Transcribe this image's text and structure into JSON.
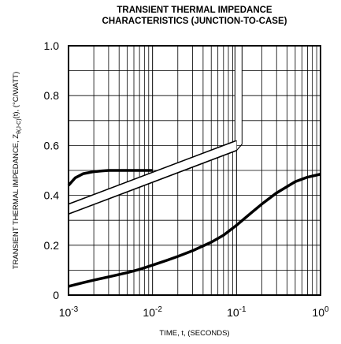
{
  "chart_data": {
    "type": "line",
    "title_lines": [
      "TRANSIENT THERMAL IMPEDANCE",
      "CHARACTERISTICS (JUNCTION-TO-CASE)"
    ],
    "xlabel": "TIME, t, (SECONDS)",
    "ylabel": {
      "prefix": "TRANSIENT THERMAL IMPEDANCE, Z",
      "subscript": "θ(J-C)",
      "suffix": "(t), (°C/WATT)"
    },
    "x_scale": "log",
    "xlim": [
      0.001,
      1
    ],
    "ylim": [
      0,
      1.0
    ],
    "x_ticks": [
      {
        "base": "10",
        "exp": "-3",
        "value": 0.001
      },
      {
        "base": "10",
        "exp": "-2",
        "value": 0.01
      },
      {
        "base": "10",
        "exp": "-1",
        "value": 0.1
      },
      {
        "base": "10",
        "exp": "0",
        "value": 1
      }
    ],
    "y_ticks": [
      "0",
      "0.2",
      "0.4",
      "0.6",
      "0.8",
      "1.0"
    ],
    "grid": true,
    "series": [
      {
        "x": [
          0.001,
          0.0015,
          0.002,
          0.003,
          0.005,
          0.007,
          0.01,
          0.015,
          0.02,
          0.03,
          0.05,
          0.07,
          0.1,
          0.15,
          0.2,
          0.3,
          0.5,
          0.7,
          1.0
        ],
        "y": [
          0.035,
          0.05,
          0.06,
          0.073,
          0.09,
          0.103,
          0.12,
          0.14,
          0.155,
          0.178,
          0.212,
          0.24,
          0.28,
          0.33,
          0.365,
          0.41,
          0.455,
          0.473,
          0.485
        ]
      },
      {
        "x": [
          0.001,
          0.0012,
          0.0015,
          0.002,
          0.0025,
          0.003,
          0.004,
          0.005,
          0.007,
          0.01
        ],
        "y": [
          0.44,
          0.47,
          0.487,
          0.495,
          0.498,
          0.5,
          0.5,
          0.5,
          0.5,
          0.5
        ]
      }
    ]
  }
}
